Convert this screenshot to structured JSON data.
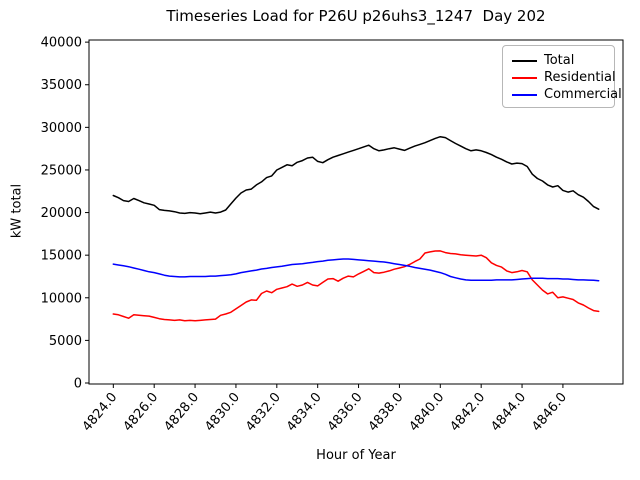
{
  "figure": {
    "title": "Timeseries Load for P26U p26uhs3_1247  Day 202",
    "xlabel": "Hour of Year",
    "ylabel": "kW total"
  },
  "chart_data": {
    "type": "line",
    "title": "Timeseries Load for P26U p26uhs3_1247  Day 202",
    "xlabel": "Hour of Year",
    "ylabel": "kW total",
    "grid": false,
    "legend_position": "upper right",
    "xlim": [
      4822.81,
      4848.94
    ],
    "ylim": [
      0,
      40250
    ],
    "xticks": [
      4824,
      4826,
      4828,
      4830,
      4832,
      4834,
      4836,
      4838,
      4840,
      4842,
      4844,
      4846
    ],
    "xtick_labels": [
      "4824.0",
      "4826.0",
      "4828.0",
      "4830.0",
      "4832.0",
      "4834.0",
      "4836.0",
      "4838.0",
      "4840.0",
      "4842.0",
      "4844.0",
      "4846.0"
    ],
    "yticks": [
      0,
      5000,
      10000,
      15000,
      20000,
      25000,
      30000,
      35000,
      40000
    ],
    "ytick_labels": [
      "0",
      "5000",
      "10000",
      "15000",
      "20000",
      "25000",
      "30000",
      "35000",
      "40000"
    ],
    "x": [
      4824.0,
      4824.25,
      4824.5,
      4824.75,
      4825.0,
      4825.25,
      4825.5,
      4825.75,
      4826.0,
      4826.25,
      4826.5,
      4826.75,
      4827.0,
      4827.25,
      4827.5,
      4827.75,
      4828.0,
      4828.25,
      4828.5,
      4828.75,
      4829.0,
      4829.25,
      4829.5,
      4829.75,
      4830.0,
      4830.25,
      4830.5,
      4830.75,
      4831.0,
      4831.25,
      4831.5,
      4831.75,
      4832.0,
      4832.25,
      4832.5,
      4832.75,
      4833.0,
      4833.25,
      4833.5,
      4833.75,
      4834.0,
      4834.25,
      4834.5,
      4834.75,
      4835.0,
      4835.25,
      4835.5,
      4835.75,
      4836.0,
      4836.25,
      4836.5,
      4836.75,
      4837.0,
      4837.25,
      4837.5,
      4837.75,
      4838.0,
      4838.25,
      4838.5,
      4838.75,
      4839.0,
      4839.25,
      4839.5,
      4839.75,
      4840.0,
      4840.25,
      4840.5,
      4840.75,
      4841.0,
      4841.25,
      4841.5,
      4841.75,
      4842.0,
      4842.25,
      4842.5,
      4842.75,
      4843.0,
      4843.25,
      4843.5,
      4843.75,
      4844.0,
      4844.25,
      4844.5,
      4844.75,
      4845.0,
      4845.25,
      4845.5,
      4845.75,
      4846.0,
      4846.25,
      4846.5,
      4846.75,
      4847.0,
      4847.25,
      4847.5,
      4847.75
    ],
    "series": [
      {
        "name": "Total",
        "color": "#000000",
        "values": [
          22000,
          21750,
          21400,
          21300,
          21650,
          21400,
          21150,
          21000,
          20850,
          20350,
          20250,
          20200,
          20100,
          19950,
          19900,
          20000,
          19950,
          19850,
          19950,
          20050,
          19950,
          20050,
          20300,
          21000,
          21700,
          22300,
          22650,
          22750,
          23250,
          23600,
          24100,
          24300,
          25000,
          25300,
          25600,
          25500,
          25900,
          26100,
          26400,
          26500,
          26000,
          25850,
          26200,
          26500,
          26700,
          26900,
          27100,
          27300,
          27500,
          27700,
          27900,
          27500,
          27250,
          27350,
          27500,
          27600,
          27450,
          27300,
          27550,
          27800,
          28000,
          28200,
          28450,
          28700,
          28900,
          28800,
          28450,
          28100,
          27800,
          27500,
          27250,
          27350,
          27250,
          27050,
          26800,
          26500,
          26250,
          25950,
          25700,
          25800,
          25750,
          25400,
          24500,
          24000,
          23700,
          23250,
          23000,
          23150,
          22600,
          22400,
          22550,
          22100,
          21800,
          21300,
          20700,
          20400
        ]
      },
      {
        "name": "Residential",
        "color": "#ff0000",
        "values": [
          8100,
          8000,
          7800,
          7600,
          8000,
          7950,
          7900,
          7850,
          7700,
          7550,
          7450,
          7400,
          7350,
          7400,
          7300,
          7350,
          7300,
          7350,
          7400,
          7450,
          7500,
          7950,
          8100,
          8300,
          8700,
          9100,
          9500,
          9750,
          9700,
          10500,
          10800,
          10600,
          11000,
          11150,
          11300,
          11600,
          11350,
          11500,
          11800,
          11500,
          11400,
          11800,
          12200,
          12250,
          11950,
          12300,
          12550,
          12450,
          12800,
          13100,
          13400,
          12950,
          12900,
          13000,
          13150,
          13350,
          13500,
          13650,
          13900,
          14250,
          14550,
          15250,
          15380,
          15490,
          15500,
          15300,
          15200,
          15150,
          15050,
          15000,
          14950,
          14900,
          15000,
          14700,
          14100,
          13800,
          13600,
          13150,
          12950,
          13050,
          13200,
          13050,
          12100,
          11500,
          10900,
          10450,
          10650,
          10000,
          10100,
          9950,
          9800,
          9400,
          9150,
          8800,
          8500,
          8400
        ]
      },
      {
        "name": "Commercial",
        "color": "#0000ff",
        "values": [
          13950,
          13850,
          13750,
          13650,
          13500,
          13350,
          13200,
          13050,
          12950,
          12800,
          12650,
          12550,
          12500,
          12450,
          12450,
          12500,
          12500,
          12500,
          12500,
          12550,
          12550,
          12600,
          12650,
          12700,
          12800,
          12950,
          13050,
          13150,
          13250,
          13380,
          13450,
          13550,
          13620,
          13700,
          13800,
          13900,
          13950,
          14000,
          14080,
          14150,
          14250,
          14300,
          14400,
          14450,
          14500,
          14550,
          14550,
          14500,
          14450,
          14400,
          14350,
          14300,
          14250,
          14200,
          14100,
          14000,
          13900,
          13800,
          13700,
          13550,
          13450,
          13350,
          13250,
          13100,
          12950,
          12750,
          12500,
          12350,
          12200,
          12100,
          12050,
          12050,
          12050,
          12050,
          12050,
          12100,
          12100,
          12100,
          12100,
          12150,
          12200,
          12250,
          12300,
          12300,
          12300,
          12250,
          12250,
          12250,
          12200,
          12200,
          12150,
          12100,
          12100,
          12080,
          12050,
          12000
        ]
      }
    ]
  }
}
